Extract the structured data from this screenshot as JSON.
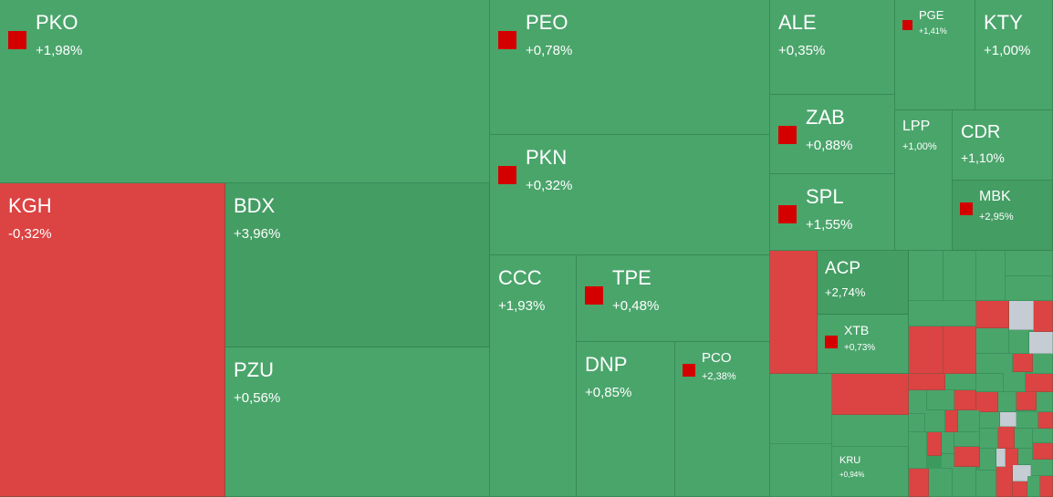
{
  "chart_data": {
    "type": "treemap",
    "colors": {
      "up": "#4aa56b",
      "up_dark": "#449d63",
      "down": "#dc4343",
      "flat": "#c5ccd4"
    },
    "items": [
      {
        "ticker": "PKO",
        "change": "+1,98%",
        "dir": "up",
        "marked": true
      },
      {
        "ticker": "PEO",
        "change": "+0,78%",
        "dir": "up",
        "marked": true
      },
      {
        "ticker": "ALE",
        "change": "+0,35%",
        "dir": "up",
        "marked": false
      },
      {
        "ticker": "PGE",
        "change": "+1,41%",
        "dir": "up",
        "marked": true
      },
      {
        "ticker": "KTY",
        "change": "+1,00%",
        "dir": "up",
        "marked": false
      },
      {
        "ticker": "PKN",
        "change": "+0,32%",
        "dir": "up",
        "marked": true
      },
      {
        "ticker": "ZAB",
        "change": "+0,88%",
        "dir": "up",
        "marked": true
      },
      {
        "ticker": "LPP",
        "change": "+1,00%",
        "dir": "up",
        "marked": false
      },
      {
        "ticker": "CDR",
        "change": "+1,10%",
        "dir": "up",
        "marked": false
      },
      {
        "ticker": "KGH",
        "change": "-0,32%",
        "dir": "down",
        "marked": false
      },
      {
        "ticker": "BDX",
        "change": "+3,96%",
        "dir": "up_dark",
        "marked": false
      },
      {
        "ticker": "SPL",
        "change": "+1,55%",
        "dir": "up",
        "marked": true
      },
      {
        "ticker": "MBK",
        "change": "+2,95%",
        "dir": "up_dark",
        "marked": true
      },
      {
        "ticker": "CCC",
        "change": "+1,93%",
        "dir": "up",
        "marked": false
      },
      {
        "ticker": "TPE",
        "change": "+0,48%",
        "dir": "up",
        "marked": true
      },
      {
        "ticker": "ACP",
        "change": "+2,74%",
        "dir": "up_dark",
        "marked": false
      },
      {
        "ticker": "XTB",
        "change": "+0,73%",
        "dir": "up",
        "marked": true
      },
      {
        "ticker": "PZU",
        "change": "+0,56%",
        "dir": "up",
        "marked": false
      },
      {
        "ticker": "DNP",
        "change": "+0,85%",
        "dir": "up",
        "marked": false
      },
      {
        "ticker": "PCO",
        "change": "+2,38%",
        "dir": "up",
        "marked": true
      },
      {
        "ticker": "KRU",
        "change": "+0,94%",
        "dir": "up",
        "marked": false
      }
    ]
  }
}
